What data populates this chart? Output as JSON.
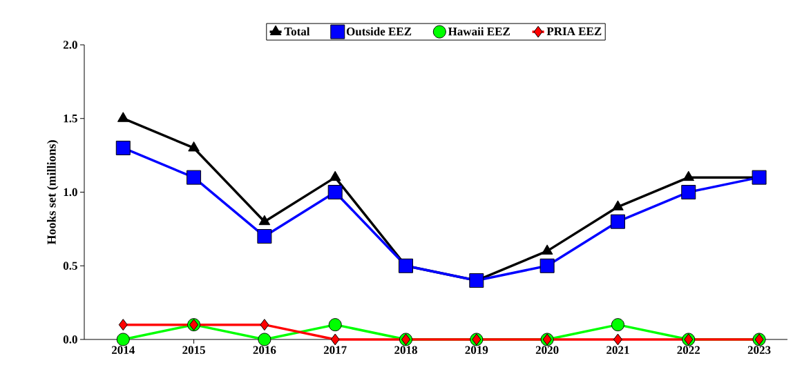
{
  "chart_data": {
    "type": "line",
    "ylabel": "Hooks set (millions)",
    "categories": [
      "2014",
      "2015",
      "2016",
      "2017",
      "2018",
      "2019",
      "2020",
      "2021",
      "2022",
      "2023"
    ],
    "series": [
      {
        "name": "Total",
        "color": "#000000",
        "marker": "triangle",
        "values": [
          1.5,
          1.3,
          0.8,
          1.1,
          0.5,
          0.4,
          0.6,
          0.9,
          1.1,
          1.1
        ]
      },
      {
        "name": "Outside EEZ",
        "color": "#0000ff",
        "marker": "square",
        "values": [
          1.3,
          1.1,
          0.7,
          1.0,
          0.5,
          0.4,
          0.5,
          0.8,
          1.0,
          1.1
        ]
      },
      {
        "name": "Hawaii EEZ",
        "color": "#00ff00",
        "marker": "circle",
        "values": [
          0.0,
          0.1,
          0.0,
          0.1,
          0.0,
          0.0,
          0.0,
          0.1,
          0.0,
          0.0
        ]
      },
      {
        "name": "PRIA EEZ",
        "color": "#ff0000",
        "marker": "diamond",
        "values": [
          0.1,
          0.1,
          0.1,
          0.0,
          0.0,
          0.0,
          0.0,
          0.0,
          0.0,
          0.0
        ]
      }
    ],
    "ylim": [
      0,
      2
    ],
    "yticks": [
      {
        "value": 0,
        "label": "0.0"
      },
      {
        "value": 0.5,
        "label": "0.5"
      },
      {
        "value": 1,
        "label": "1.0"
      },
      {
        "value": 1.5,
        "label": "1.5"
      },
      {
        "value": 2,
        "label": "2.0"
      }
    ],
    "grid": false,
    "legend": "top",
    "line_style": "solid"
  }
}
